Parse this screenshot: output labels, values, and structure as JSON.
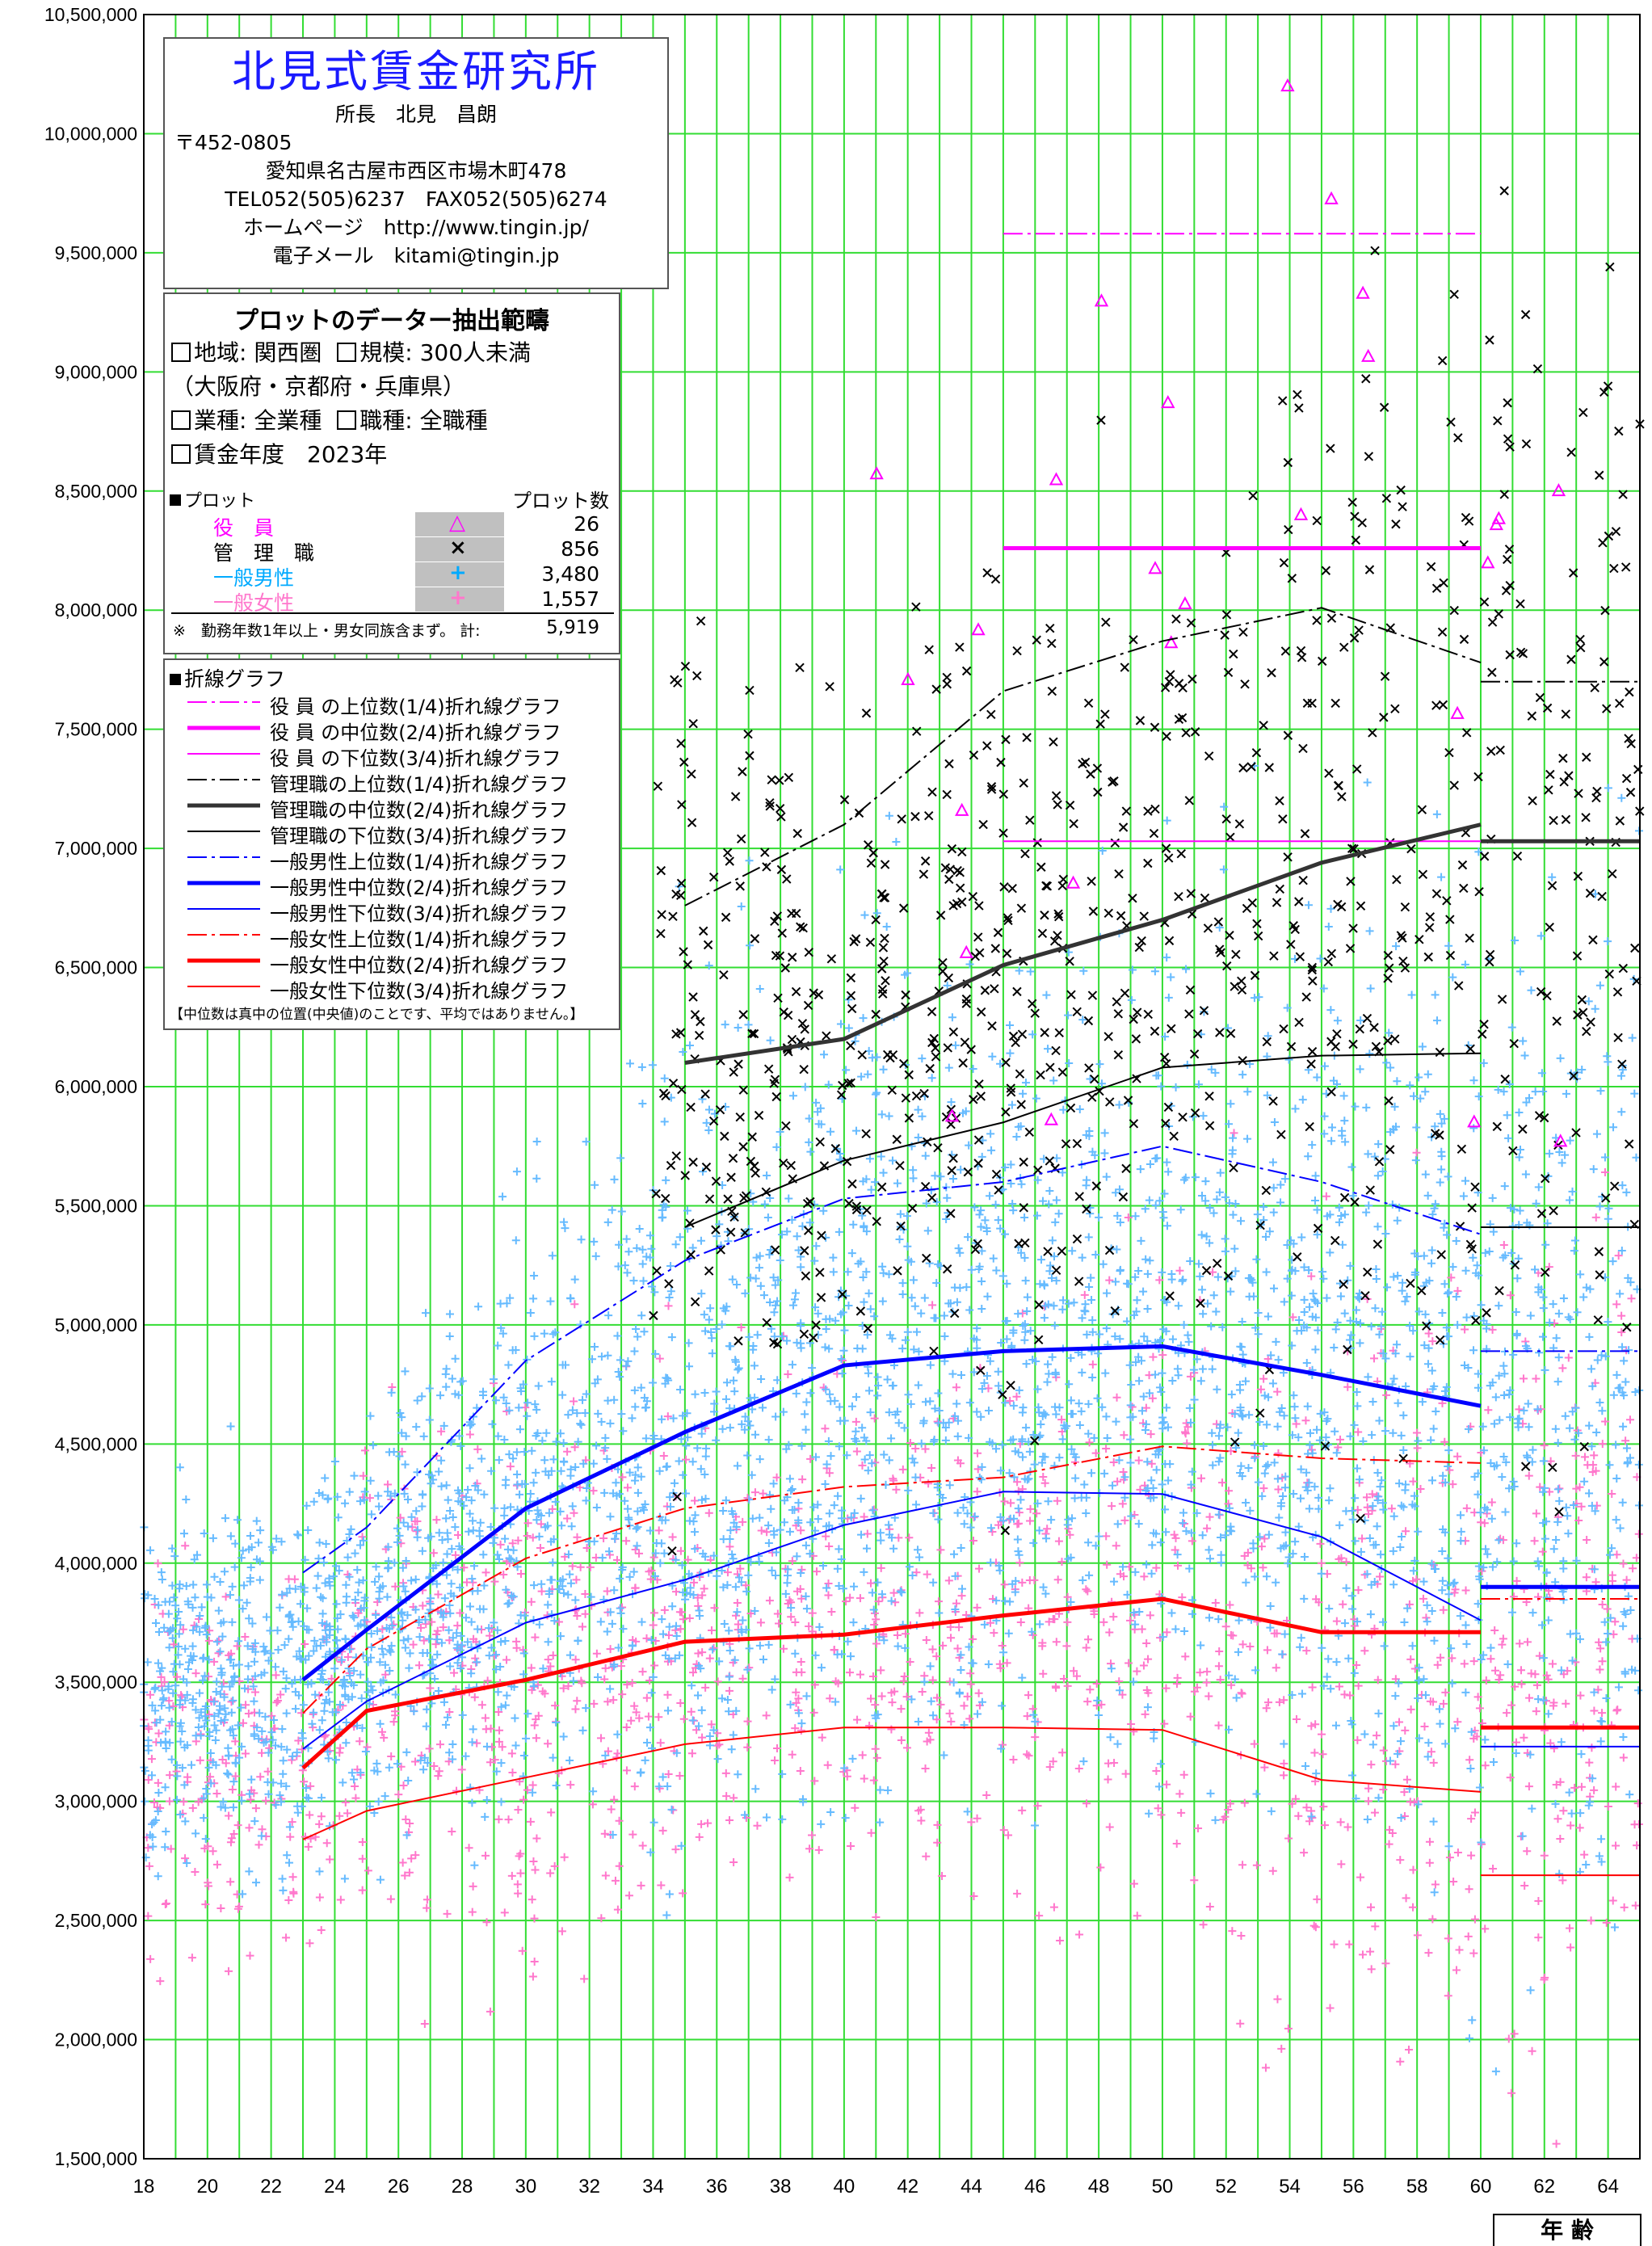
{
  "chart_data": {
    "type": "scatter",
    "xlabel": "年 齢",
    "ylim": [
      1500000,
      10500000
    ],
    "xlim": [
      18,
      65
    ],
    "y_ticks": [
      "1,500,000",
      "2,000,000",
      "2,500,000",
      "3,000,000",
      "3,500,000",
      "4,000,000",
      "4,500,000",
      "5,000,000",
      "5,500,000",
      "6,000,000",
      "6,500,000",
      "7,000,000",
      "7,500,000",
      "8,000,000",
      "8,500,000",
      "9,000,000",
      "9,500,000",
      "10,000,000",
      "10,500,000"
    ],
    "x_ticks": [
      "18",
      "20",
      "22",
      "24",
      "26",
      "28",
      "30",
      "32",
      "34",
      "36",
      "38",
      "40",
      "42",
      "44",
      "46",
      "48",
      "50",
      "52",
      "54",
      "56",
      "58",
      "60",
      "62",
      "64"
    ],
    "grid": true,
    "lines": [
      {
        "name": "役 員 の上位数(1/4)折れ線グラフ",
        "color": "#ff00ff",
        "width": 2,
        "dash": "24 6 4 6",
        "x": [
          45,
          60
        ],
        "y": [
          9580000,
          9580000
        ]
      },
      {
        "name": "役 員 の中位数(2/4)折れ線グラフ",
        "color": "#ff00ff",
        "width": 5,
        "dash": "",
        "x": [
          45,
          60
        ],
        "y": [
          8260000,
          8260000
        ]
      },
      {
        "name": "役 員 の下位数(3/4)折れ線グラフ",
        "color": "#ff00ff",
        "width": 2,
        "dash": "",
        "x": [
          45,
          60
        ],
        "y": [
          7030000,
          7030000
        ]
      },
      {
        "name": "管理職の上位数(1/4)折れ線グラフ",
        "color": "#000000",
        "width": 2,
        "dash": "24 6 4 6",
        "x": [
          35,
          40,
          45,
          50,
          55,
          60
        ],
        "y": [
          6760000,
          7100000,
          7660000,
          7870000,
          8010000,
          7780000
        ]
      },
      {
        "name": "管理職の中位数(2/4)折れ線グラフ",
        "color": "#333333",
        "width": 5,
        "dash": "",
        "x": [
          35,
          40,
          45,
          50,
          55,
          60
        ],
        "y": [
          6100000,
          6200000,
          6510000,
          6700000,
          6940000,
          7100000
        ]
      },
      {
        "name": "管理職の下位数(3/4)折れ線グラフ",
        "color": "#000000",
        "width": 2,
        "dash": "",
        "x": [
          35,
          40,
          45,
          50,
          55,
          60
        ],
        "y": [
          5410000,
          5690000,
          5850000,
          6080000,
          6130000,
          6140000
        ]
      },
      {
        "name": "一般男性上位数(1/4)折れ線グラフ",
        "color": "#0000ff",
        "width": 2,
        "dash": "24 6 4 6",
        "x": [
          23,
          25,
          30,
          35,
          40,
          45,
          50,
          55,
          60
        ],
        "y": [
          3960000,
          4150000,
          4850000,
          5270000,
          5530000,
          5600000,
          5750000,
          5600000,
          5380000
        ]
      },
      {
        "name": "一般男性中位数(2/4)折れ線グラフ",
        "color": "#0000ff",
        "width": 5,
        "dash": "",
        "x": [
          23,
          25,
          30,
          35,
          40,
          45,
          50,
          55,
          60
        ],
        "y": [
          3510000,
          3720000,
          4230000,
          4550000,
          4830000,
          4890000,
          4910000,
          4790000,
          4660000
        ]
      },
      {
        "name": "一般男性下位数(3/4)折れ線グラフ",
        "color": "#0000ff",
        "width": 2,
        "dash": "",
        "x": [
          23,
          25,
          30,
          35,
          40,
          45,
          50,
          55,
          60
        ],
        "y": [
          3220000,
          3420000,
          3750000,
          3930000,
          4160000,
          4300000,
          4290000,
          4110000,
          3760000
        ]
      },
      {
        "name": "一般女性上位数(1/4)折れ線グラフ",
        "color": "#ff0000",
        "width": 2,
        "dash": "24 6 4 6",
        "x": [
          23,
          25,
          30,
          35,
          40,
          45,
          50,
          55,
          60
        ],
        "y": [
          3370000,
          3640000,
          4020000,
          4230000,
          4320000,
          4360000,
          4490000,
          4440000,
          4420000
        ]
      },
      {
        "name": "一般女性中位数(2/4)折れ線グラフ",
        "color": "#ff0000",
        "width": 5,
        "dash": "",
        "x": [
          23,
          25,
          30,
          35,
          40,
          45,
          50,
          55,
          60
        ],
        "y": [
          3140000,
          3380000,
          3510000,
          3670000,
          3700000,
          3780000,
          3850000,
          3710000,
          3710000
        ]
      },
      {
        "name": "一般女性下位数(3/4)折れ線グラフ",
        "color": "#ff0000",
        "width": 2,
        "dash": "",
        "x": [
          23,
          25,
          30,
          35,
          40,
          45,
          50,
          55,
          60
        ],
        "y": [
          2840000,
          2960000,
          3100000,
          3240000,
          3310000,
          3310000,
          3300000,
          3090000,
          3040000
        ]
      }
    ],
    "over60_lines": [
      {
        "color": "#000000",
        "width": 2,
        "dash": "24 6 4 6",
        "y": 7700000
      },
      {
        "color": "#333333",
        "width": 5,
        "dash": "",
        "y": 7030000
      },
      {
        "color": "#000000",
        "width": 2,
        "dash": "",
        "y": 5410000
      },
      {
        "color": "#0000ff",
        "width": 2,
        "dash": "24 6 4 6",
        "y": 4890000
      },
      {
        "color": "#0000ff",
        "width": 5,
        "dash": "",
        "y": 3900000
      },
      {
        "color": "#ff0000",
        "width": 2,
        "dash": "24 6 4 6",
        "y": 3850000
      },
      {
        "color": "#ff0000",
        "width": 5,
        "dash": "",
        "y": 3310000
      },
      {
        "color": "#0000ff",
        "width": 2,
        "dash": "",
        "y": 3230000
      },
      {
        "color": "#ff0000",
        "width": 2,
        "dash": "",
        "y": 2690000
      }
    ],
    "scatter_series": [
      {
        "key": "female",
        "count": 1557,
        "color": "#ff77cc",
        "symbol": "+"
      },
      {
        "key": "male",
        "count": 3480,
        "color": "#66bbff",
        "symbol": "+"
      },
      {
        "key": "manager",
        "count": 856,
        "color": "#000000",
        "symbol": "×"
      },
      {
        "key": "executive",
        "count": 26,
        "color": "#ff00ff",
        "symbol": "△"
      }
    ]
  },
  "company": {
    "name": "北見式賃金研究所",
    "director": "所長　北見　昌朗",
    "postal": "〒452-0805",
    "address": "愛知県名古屋市西区市場木町478",
    "tel_fax": "TEL052(505)6237　FAX052(505)6274",
    "homepage": "ホームページ　http://www.tingin.jp/",
    "email": "電子メール　kitami@tingin.jp"
  },
  "extract": {
    "title": "プロットのデーター抽出範疇",
    "region": "地域: 関西圏",
    "scale": "規模: 300人未満",
    "prefectures": "（大阪府・京都府・兵庫県）",
    "industry": "業種: 全業種",
    "job": "職種: 全職種",
    "year": "賃金年度　2023年",
    "plot_header": "プロット",
    "plot_count_header": "プロット数",
    "plots": [
      {
        "label": "役　員",
        "symbol": "△",
        "count": "26",
        "color": "#ff00ff"
      },
      {
        "label": "管　理　職",
        "symbol": "×",
        "count": "856",
        "color": "#000000"
      },
      {
        "label": "一般男性",
        "symbol": "+",
        "count": "3,480",
        "color": "#00aaff"
      },
      {
        "label": "一般女性",
        "symbol": "+",
        "count": "1,557",
        "color": "#ff77cc"
      }
    ],
    "note": "※　勤務年数1年以上・男女同族含まず。 計:",
    "total": "5,919"
  },
  "legend": {
    "title": "折線グラフ",
    "note": "【中位数は真中の位置(中央値)のことです、平均ではありません。】"
  }
}
